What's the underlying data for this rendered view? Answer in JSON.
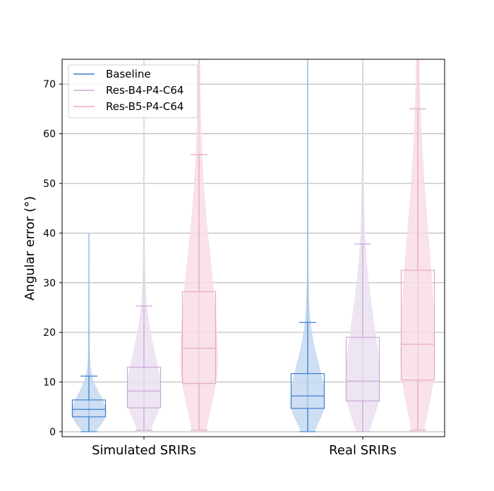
{
  "chart_data": {
    "type": "violin+box",
    "ylabel": "Angular error (°)",
    "ylim": [
      -1,
      75
    ],
    "yticks": [
      0,
      10,
      20,
      30,
      40,
      50,
      60,
      70
    ],
    "grid": "y",
    "legend_position": "top-left",
    "categories": [
      "Simulated SRIRs",
      "Real SRIRs"
    ],
    "series": [
      {
        "name": "Baseline",
        "color": "#3e7fcf",
        "fill": "#c6d9f1",
        "stats": [
          {
            "category": "Simulated SRIRs",
            "min": 0,
            "q1": 3,
            "median": 4.5,
            "q3": 6.4,
            "whisker_high": 11.2,
            "max": 40
          },
          {
            "category": "Real SRIRs",
            "min": 0,
            "q1": 4.7,
            "median": 7.2,
            "q3": 11.7,
            "whisker_high": 22,
            "max": 75
          }
        ]
      },
      {
        "name": "Res-B4-P4-C64",
        "color": "#c9a9d9",
        "fill": "#ebe0f0",
        "stats": [
          {
            "category": "Simulated SRIRs",
            "min": 0.3,
            "q1": 4.8,
            "median": 8.2,
            "q3": 13,
            "whisker_high": 25.3,
            "max": 75
          },
          {
            "category": "Real SRIRs",
            "min": 0,
            "q1": 6.2,
            "median": 10.2,
            "q3": 19,
            "whisker_high": 37.8,
            "max": 75
          }
        ]
      },
      {
        "name": "Res-B5-P4-C64",
        "color": "#e8aabc",
        "fill": "#f8dde5",
        "stats": [
          {
            "category": "Simulated SRIRs",
            "min": 0.3,
            "q1": 9.7,
            "median": 16.8,
            "q3": 28.2,
            "whisker_high": 55.8,
            "max": 75
          },
          {
            "category": "Real SRIRs",
            "min": 0.3,
            "q1": 10.4,
            "median": 17.6,
            "q3": 32.5,
            "whisker_high": 65,
            "max": 75
          }
        ]
      }
    ]
  }
}
